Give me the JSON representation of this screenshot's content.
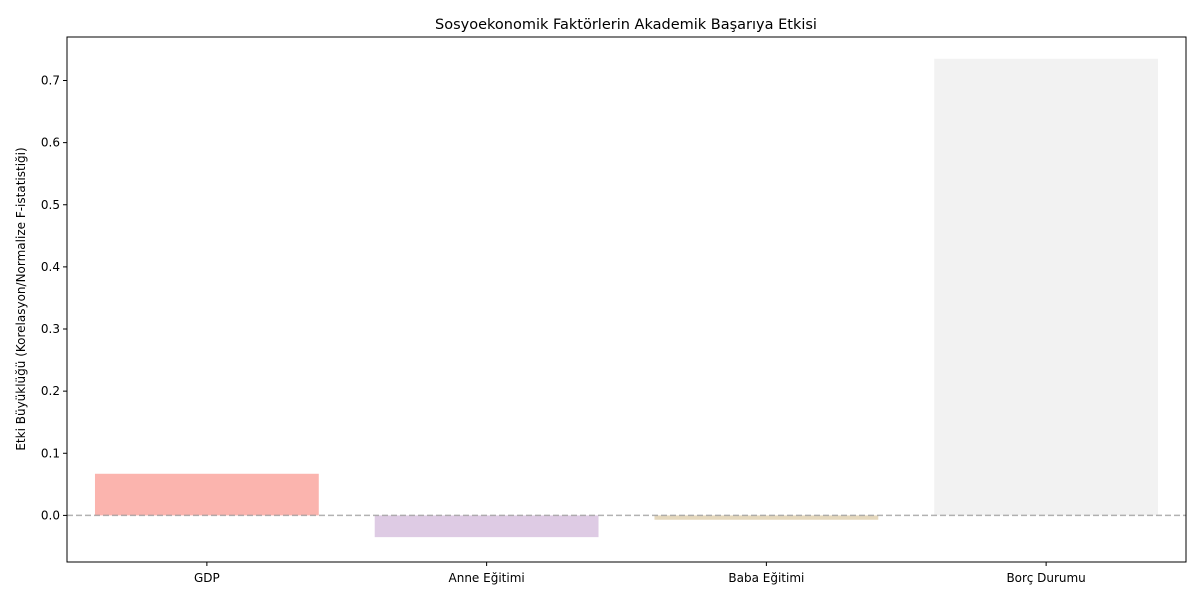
{
  "chart_data": {
    "type": "bar",
    "title": "Sosyoekonomik Faktörlerin Akademik Başarıya Etkisi",
    "xlabel": "",
    "ylabel": "Etki Büyüklüğü (Korelasyon/Normalize F-istatistiği)",
    "categories": [
      "GDP",
      "Anne Eğitimi",
      "Baba Eğitimi",
      "Borç Durumu"
    ],
    "values": [
      0.067,
      -0.035,
      -0.007,
      0.735
    ],
    "ylim": [
      -0.075,
      0.77
    ],
    "yticks": [
      0.0,
      0.1,
      0.2,
      0.3,
      0.4,
      0.5,
      0.6,
      0.7
    ],
    "ytick_labels": [
      "0.0",
      "0.1",
      "0.2",
      "0.3",
      "0.4",
      "0.5",
      "0.6",
      "0.7"
    ],
    "colors": [
      "#fbb4ae",
      "#decbe4",
      "#e5d8bd",
      "#f2f2f2"
    ],
    "reference_line": {
      "y": 0,
      "style": "dashed",
      "color": "#999999"
    },
    "grid": false,
    "legend": "none"
  }
}
